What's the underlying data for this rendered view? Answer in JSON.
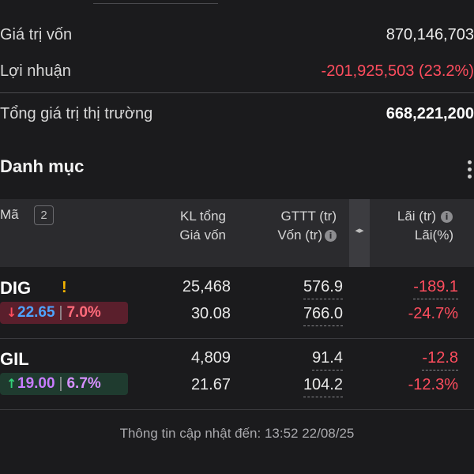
{
  "summary": {
    "capital_label": "Giá trị vốn",
    "capital_value": "870,146,703",
    "profit_label": "Lợi nhuận",
    "profit_value": "-201,925,503 (23.2%)",
    "market_label": "Tổng giá trị thị trường",
    "market_value": "668,221,200"
  },
  "portfolio": {
    "title": "Danh mục",
    "menu_icon": "kebab-menu-icon"
  },
  "table": {
    "headers": {
      "code": "Mã",
      "count": "2",
      "kl_total": "KL tổng",
      "cost_price": "Giá vốn",
      "market_value": "GTTT (tr)",
      "capital": "Vốn (tr)",
      "profit": "Lãi (tr)",
      "profit_pct": "Lãi(%)",
      "info_glyph": "i",
      "splitter_glyph": "◂▸"
    },
    "rows": [
      {
        "code": "DIG",
        "warning": "!",
        "direction": "down",
        "arrow": "↓",
        "price": "22.65",
        "separator": "|",
        "change_pct": "7.0%",
        "kl_total": "25,468",
        "cost_price": "30.08",
        "market_value": "576.9",
        "capital": "766.0",
        "profit": "-189.1",
        "profit_pct": "-24.7%"
      },
      {
        "code": "GIL",
        "direction": "up",
        "arrow": "↑",
        "price": "19.00",
        "separator": "|",
        "change_pct": "6.7%",
        "kl_total": "4,809",
        "cost_price": "21.67",
        "market_value": "91.4",
        "capital": "104.2",
        "profit": "-12.8",
        "profit_pct": "-12.3%"
      }
    ]
  },
  "footer": {
    "updated": "Thông tin cập nhật đến: 13:52 22/08/25"
  },
  "colors": {
    "background": "#1b1b1d",
    "negative": "#ff4d5e",
    "header_bg": "#2b2b2e",
    "warning": "#f5b400"
  }
}
